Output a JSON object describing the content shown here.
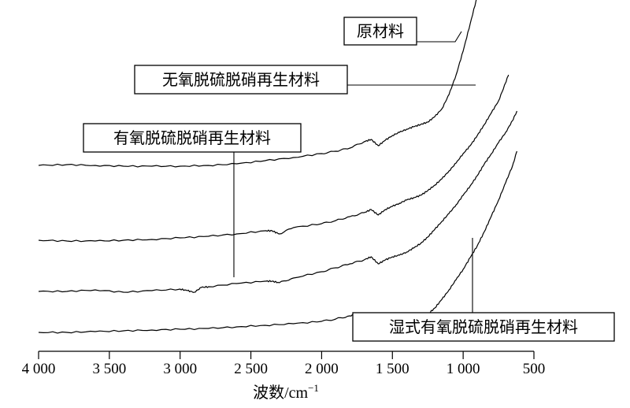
{
  "chart_data": {
    "type": "line",
    "title": "",
    "xlabel": "波数/cm",
    "xlabel_sup": "−1",
    "ylabel": "",
    "xlim": [
      4000,
      500
    ],
    "xticks": [
      4000,
      3500,
      3000,
      2500,
      2000,
      1500,
      1000,
      500
    ],
    "xtick_labels": [
      "4 000",
      "3 500",
      "3 000",
      "2 500",
      "2 000",
      "1 500",
      "1 000",
      "500"
    ],
    "y_axis_shown": false,
    "grid": false,
    "legend": "callout boxes with leader lines",
    "series": [
      {
        "name": "原材料",
        "x": [
          4000,
          3800,
          3600,
          3400,
          3200,
          3000,
          2800,
          2600,
          2400,
          2200,
          2000,
          1900,
          1800,
          1700,
          1650,
          1600,
          1550,
          1500,
          1450,
          1400,
          1350,
          1300,
          1250,
          1200,
          1150,
          1100,
          1050,
          1000,
          950,
          900,
          850,
          810
        ],
        "y": [
          0.7,
          0.71,
          0.7,
          0.69,
          0.69,
          0.69,
          0.7,
          0.72,
          0.76,
          0.8,
          0.85,
          0.88,
          0.92,
          1.0,
          1.03,
          0.95,
          1.02,
          1.08,
          1.12,
          1.16,
          1.19,
          1.22,
          1.25,
          1.32,
          1.42,
          1.6,
          1.85,
          2.15,
          2.5,
          2.85,
          3.2,
          3.45
        ]
      },
      {
        "name": "无氧脱硫脱硝再生材料",
        "x": [
          4000,
          3800,
          3600,
          3400,
          3200,
          3000,
          2800,
          2600,
          2400,
          2350,
          2300,
          2200,
          2000,
          1900,
          1800,
          1700,
          1650,
          1600,
          1550,
          1500,
          1450,
          1400,
          1350,
          1300,
          1250,
          1200,
          1150,
          1100,
          1050,
          1000,
          950,
          900,
          850,
          800,
          750,
          700,
          680
        ],
        "y": [
          0.35,
          0.34,
          0.34,
          0.35,
          0.36,
          0.38,
          0.4,
          0.43,
          0.47,
          0.47,
          0.43,
          0.51,
          0.56,
          0.6,
          0.65,
          0.7,
          0.74,
          0.67,
          0.74,
          0.78,
          0.82,
          0.86,
          0.89,
          0.92,
          0.98,
          1.05,
          1.13,
          1.23,
          1.33,
          1.45,
          1.55,
          1.68,
          1.82,
          1.97,
          2.12,
          2.35,
          2.45
        ]
      },
      {
        "name": "有氧脱硫脱硝再生材料",
        "x": [
          4000,
          3800,
          3600,
          3400,
          3200,
          3000,
          2950,
          2900,
          2850,
          2800,
          2600,
          2400,
          2350,
          2300,
          2200,
          2000,
          1900,
          1800,
          1700,
          1650,
          1600,
          1550,
          1500,
          1450,
          1400,
          1350,
          1300,
          1250,
          1200,
          1150,
          1100,
          1050,
          1000,
          950,
          900,
          850,
          800,
          750,
          700,
          650,
          620
        ],
        "y": [
          0.13,
          0.13,
          0.15,
          0.12,
          0.14,
          0.16,
          0.14,
          0.12,
          0.18,
          0.19,
          0.23,
          0.26,
          0.26,
          0.24,
          0.3,
          0.38,
          0.43,
          0.48,
          0.53,
          0.57,
          0.48,
          0.53,
          0.57,
          0.59,
          0.63,
          0.68,
          0.74,
          0.82,
          0.92,
          1.02,
          1.12,
          1.23,
          1.35,
          1.47,
          1.6,
          1.75,
          1.88,
          2.02,
          2.15,
          2.3,
          2.42
        ]
      },
      {
        "name": "湿式有氧脱硫脱硝再生材料",
        "x": [
          4000,
          3800,
          3600,
          3400,
          3200,
          3000,
          2800,
          2600,
          2400,
          2200,
          2000,
          1900,
          1800,
          1750,
          1700,
          1650,
          1600,
          1550,
          1500,
          1450,
          1400,
          1350,
          1300,
          1250,
          1200,
          1150,
          1100,
          1050,
          1000,
          950,
          900,
          850,
          800,
          750,
          700,
          650,
          620
        ],
        "y": [
          0.0,
          0.0,
          0.01,
          0.02,
          0.03,
          0.04,
          0.05,
          0.07,
          0.09,
          0.11,
          0.14,
          0.17,
          0.21,
          0.24,
          0.24,
          0.22,
          0.13,
          0.18,
          0.21,
          0.22,
          0.22,
          0.21,
          0.21,
          0.23,
          0.31,
          0.42,
          0.54,
          0.67,
          0.8,
          0.95,
          1.1,
          1.28,
          1.48,
          1.68,
          1.9,
          2.12,
          2.3
        ]
      }
    ]
  }
}
